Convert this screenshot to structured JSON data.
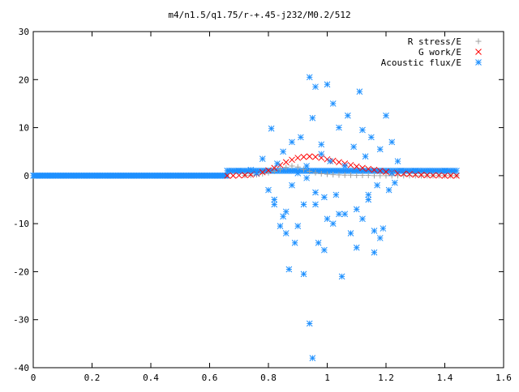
{
  "chart_data": {
    "type": "scatter",
    "title": "m4/n1.5/q1.75/r-+.45-j232/M0.2/512",
    "xlabel": "",
    "ylabel": "",
    "xlim": [
      0,
      1.6
    ],
    "ylim": [
      -40,
      30
    ],
    "x_ticks": [
      "0",
      "0.2",
      "0.4",
      "0.6",
      "0.8",
      "1",
      "1.2",
      "1.4",
      "1.6"
    ],
    "y_ticks": [
      "30",
      "20",
      "10",
      "0",
      "-10",
      "-20",
      "-30",
      "-40"
    ],
    "grid": false,
    "legend_position": "top-right",
    "series": [
      {
        "name": "R stress/E",
        "marker": "+",
        "color": "#a0a0a0",
        "x": [
          0.72,
          0.74,
          0.76,
          0.78,
          0.8,
          0.82,
          0.84,
          0.86,
          0.88,
          0.9,
          0.92,
          0.94,
          0.96,
          0.98,
          1.0,
          1.02,
          1.04,
          1.06,
          1.08,
          1.1,
          1.12,
          1.14,
          1.16,
          1.18,
          1.2,
          1.22,
          1.24,
          1.26,
          1.28,
          1.3,
          1.32,
          1.34,
          1.36,
          1.38,
          1.4,
          1.42,
          1.44
        ],
        "y": [
          0.05,
          0.1,
          0.2,
          0.4,
          0.6,
          0.9,
          1.3,
          1.7,
          2.0,
          1.8,
          1.3,
          0.9,
          0.6,
          0.4,
          0.3,
          0.2,
          0.15,
          0.1,
          0.1,
          0.05,
          0.05,
          0.05,
          0.0,
          0.0,
          0.0,
          0.0,
          0.0,
          0.0,
          0.0,
          0.0,
          0.0,
          0.0,
          0.0,
          0.0,
          0.0,
          0.0,
          0.0
        ]
      },
      {
        "name": "G work/E",
        "marker": "x",
        "color": "#ff0000",
        "x": [
          0.66,
          0.68,
          0.7,
          0.72,
          0.74,
          0.76,
          0.78,
          0.8,
          0.82,
          0.84,
          0.86,
          0.88,
          0.9,
          0.92,
          0.94,
          0.96,
          0.98,
          1.0,
          1.02,
          1.04,
          1.06,
          1.08,
          1.1,
          1.12,
          1.14,
          1.16,
          1.18,
          1.2,
          1.22,
          1.24,
          1.26,
          1.28,
          1.3,
          1.32,
          1.34,
          1.36,
          1.38,
          1.4,
          1.42,
          1.44
        ],
        "y": [
          0.0,
          0.0,
          0.05,
          0.1,
          0.2,
          0.4,
          0.7,
          1.1,
          1.6,
          2.2,
          2.8,
          3.3,
          3.7,
          3.9,
          4.0,
          3.9,
          3.7,
          3.4,
          3.1,
          2.8,
          2.5,
          2.2,
          1.9,
          1.6,
          1.4,
          1.2,
          1.0,
          0.8,
          0.6,
          0.5,
          0.4,
          0.3,
          0.2,
          0.15,
          0.1,
          0.05,
          0.05,
          0.0,
          0.0,
          0.0
        ]
      },
      {
        "name": "Acoustic flux/E",
        "marker": "*",
        "color": "#1e90ff",
        "x": [
          0.66,
          0.7,
          0.74,
          0.76,
          0.78,
          0.8,
          0.81,
          0.82,
          0.83,
          0.84,
          0.85,
          0.86,
          0.87,
          0.88,
          0.89,
          0.9,
          0.91,
          0.92,
          0.93,
          0.94,
          0.94,
          0.95,
          0.95,
          0.96,
          0.96,
          0.97,
          0.98,
          0.99,
          1.0,
          1.0,
          1.01,
          1.02,
          1.03,
          1.04,
          1.05,
          1.06,
          1.07,
          1.08,
          1.09,
          1.1,
          1.11,
          1.12,
          1.13,
          1.14,
          1.15,
          1.16,
          1.17,
          1.18,
          1.19,
          1.2,
          1.21,
          1.22,
          1.23,
          1.24,
          1.25,
          1.3,
          1.35,
          1.4,
          1.44,
          0.82,
          0.85,
          0.88,
          0.9,
          0.92,
          0.96,
          0.98,
          1.02,
          1.06,
          1.1,
          1.14,
          1.18,
          1.22,
          0.86,
          0.93,
          0.99,
          1.04,
          1.12,
          1.16
        ],
        "y": [
          1.0,
          1.0,
          1.2,
          0.5,
          3.5,
          -3.0,
          9.8,
          -6.0,
          2.5,
          -10.5,
          5.0,
          -12.0,
          -19.5,
          7.0,
          -14.0,
          0.5,
          8.0,
          -20.5,
          2.0,
          -30.8,
          20.5,
          -38.0,
          12.0,
          -6.0,
          18.5,
          -14.0,
          6.5,
          -15.5,
          19.0,
          -9.0,
          3.0,
          15.0,
          -4.0,
          10.0,
          -21.0,
          -8.0,
          12.5,
          -12.0,
          6.0,
          -15.0,
          17.5,
          -9.0,
          4.0,
          -4.0,
          8.0,
          -16.0,
          -2.0,
          5.5,
          -11.0,
          12.5,
          -3.0,
          7.0,
          -1.5,
          3.0,
          1.0,
          1.0,
          1.0,
          1.0,
          1.0,
          -5.0,
          -8.5,
          -2.0,
          -10.5,
          -6.0,
          -3.5,
          4.5,
          -10.0,
          2.0,
          -7.0,
          -5.0,
          -13.0,
          0.5,
          -7.5,
          -0.5,
          -4.5,
          -8.0,
          9.5,
          -11.5
        ]
      }
    ]
  }
}
